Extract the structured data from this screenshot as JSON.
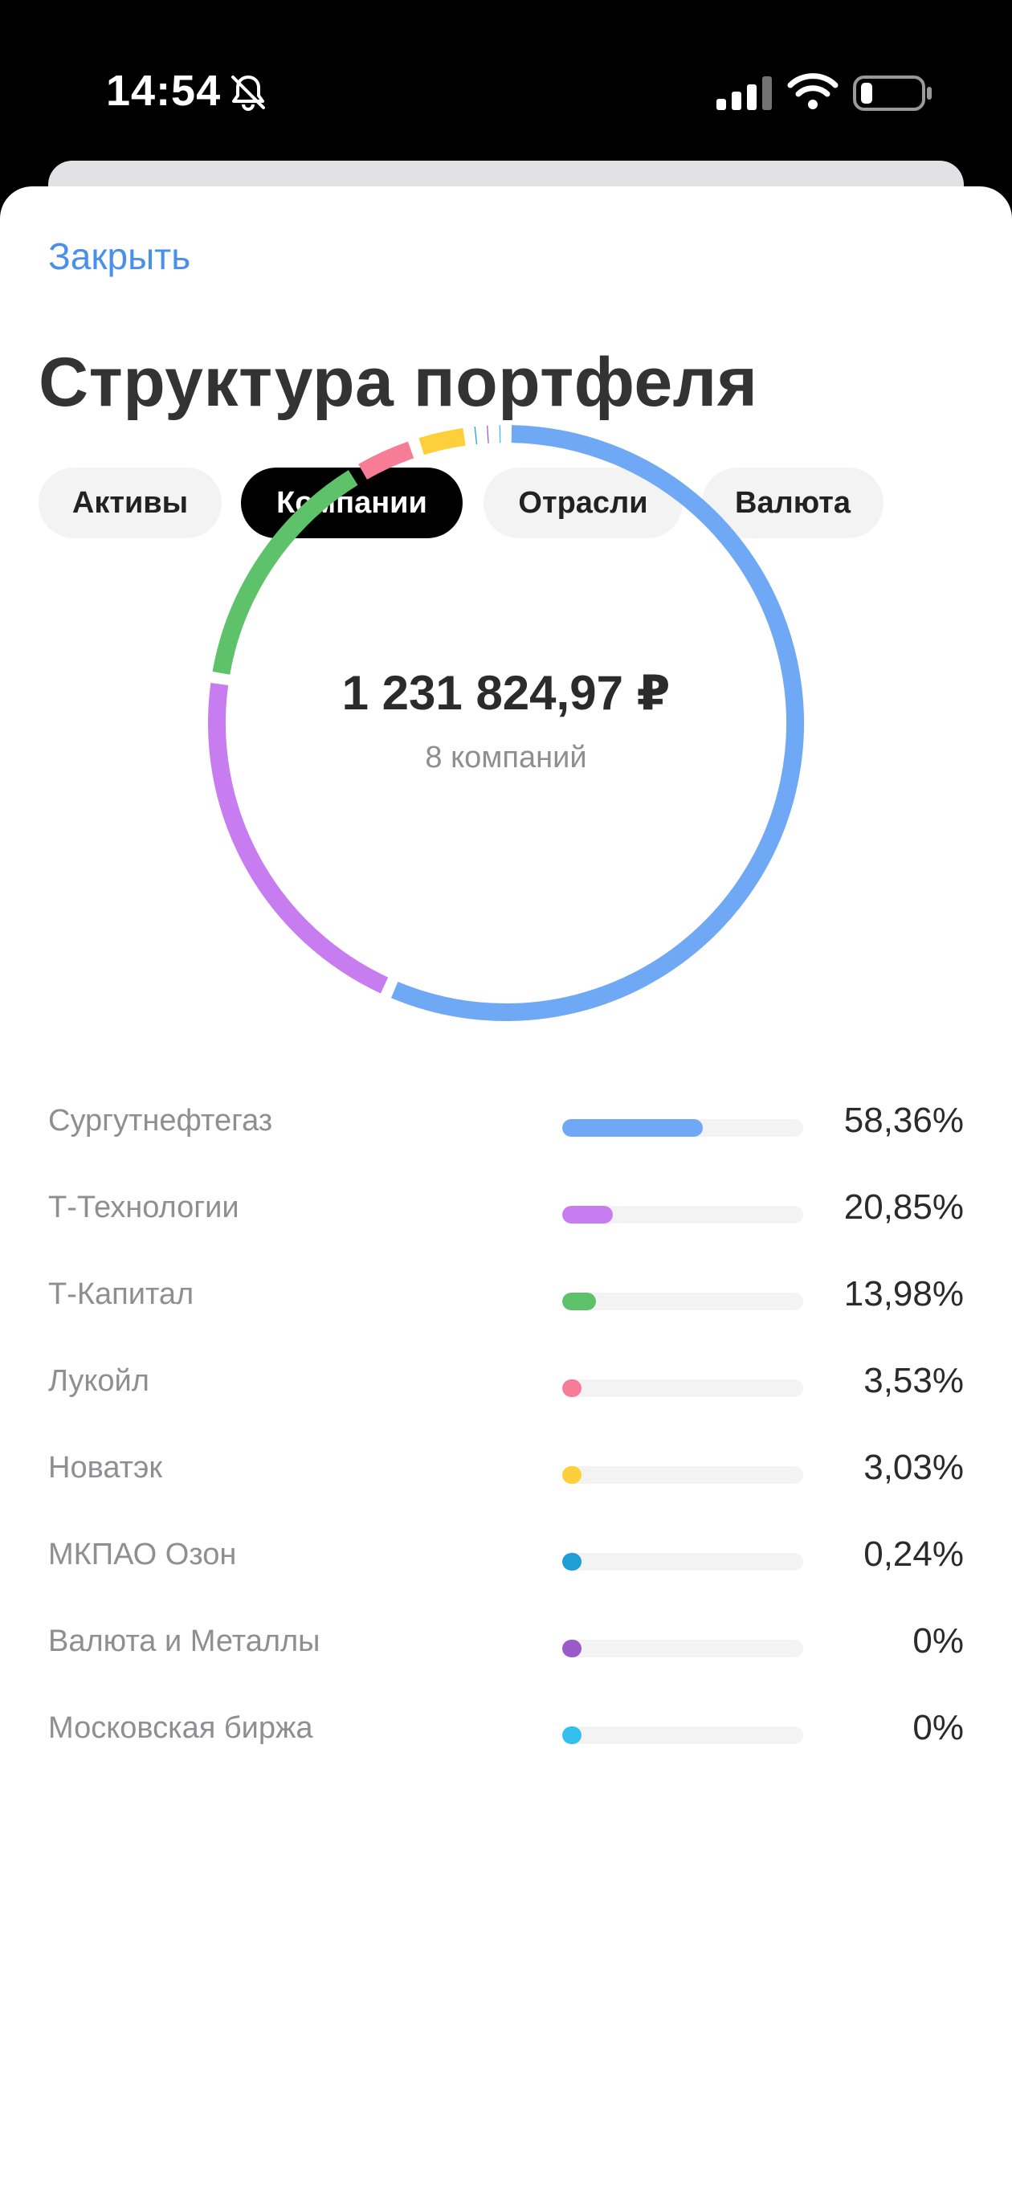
{
  "status_bar": {
    "time": "14:54",
    "icons": [
      "bell-slash-icon",
      "cellular-signal-icon",
      "wifi-icon",
      "battery-icon"
    ]
  },
  "header": {
    "close_label": "Закрыть",
    "title": "Структура портфеля"
  },
  "tabs": [
    {
      "label": "Активы",
      "active": false
    },
    {
      "label": "Компании",
      "active": true
    },
    {
      "label": "Отрасли",
      "active": false
    },
    {
      "label": "Валюта",
      "active": false
    }
  ],
  "summary": {
    "total": "1 231 824,97 ₽",
    "count_label": "8 компаний"
  },
  "chart_data": {
    "type": "pie",
    "title": "",
    "categories": [
      "Сургутнефтегаз",
      "Т-Технологии",
      "Т-Капитал",
      "Лукойл",
      "Новатэк",
      "МКПАО Озон",
      "Валюта и Металлы",
      "Московская биржа"
    ],
    "values": [
      58.36,
      20.85,
      13.98,
      3.53,
      3.03,
      0.24,
      0,
      0
    ],
    "labels": [
      "58,36%",
      "20,85%",
      "13,98%",
      "3,53%",
      "3,03%",
      "0,24%",
      "0%",
      "0%"
    ],
    "colors": [
      "#6fa8f5",
      "#c77df0",
      "#5ec26a",
      "#f77d97",
      "#fdd03b",
      "#1f9ed6",
      "#9b59c9",
      "#33c0ee"
    ],
    "unit": "%"
  }
}
